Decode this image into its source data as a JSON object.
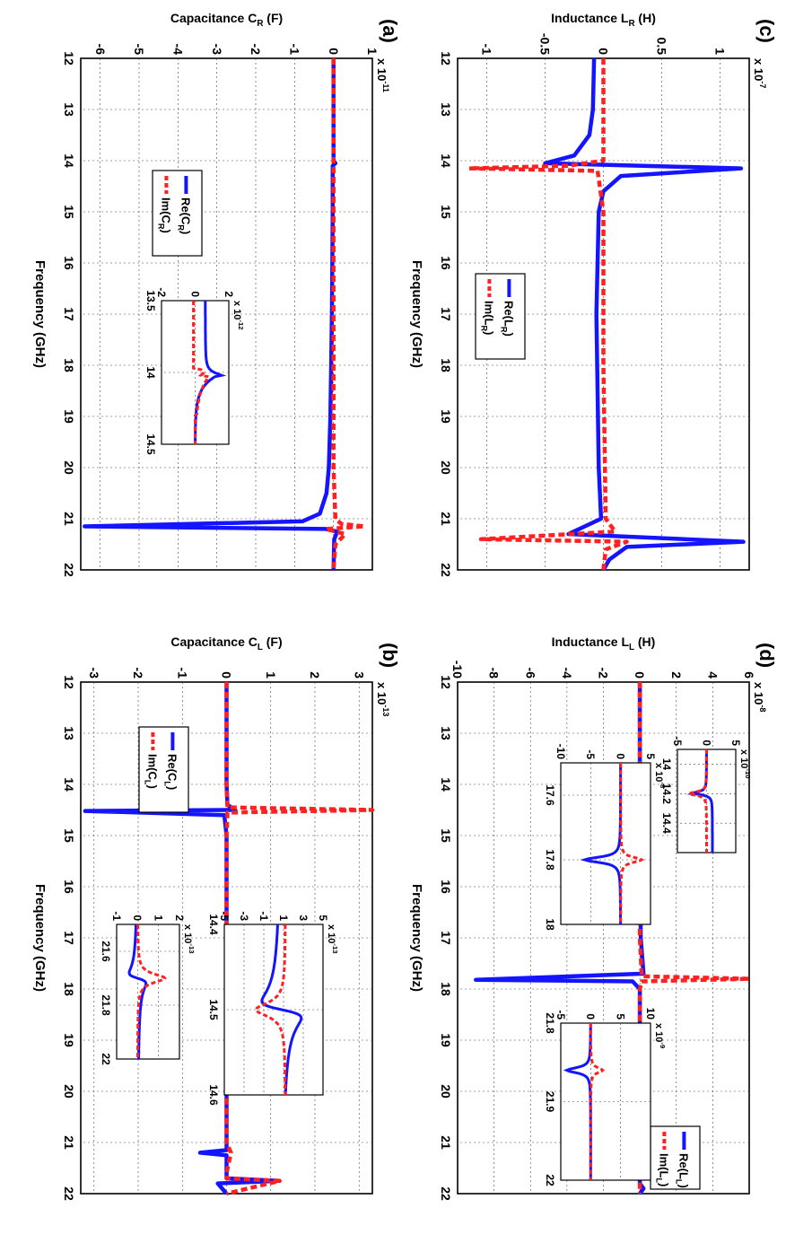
{
  "figure": {
    "xlabel": "Frequency (GHz)",
    "panels": [
      {
        "id": "a",
        "label": "(a)",
        "ylabel_html": [
          "Capacitance  C",
          "R",
          " (F)"
        ],
        "exponent": [
          "x 10",
          "-11"
        ],
        "xticks": [
          "12",
          "13",
          "14",
          "15",
          "16",
          "17",
          "18",
          "19",
          "20",
          "21",
          "22"
        ],
        "yticks": [
          "1",
          "0",
          "-1",
          "-2",
          "-3",
          "-4",
          "-5",
          "-6"
        ],
        "xlim": [
          12,
          22
        ],
        "ylim": [
          -6.5,
          1
        ],
        "legend": {
          "re": [
            "Re(C",
            "R",
            ")"
          ],
          "im": [
            "Im(C",
            "R",
            ")"
          ]
        },
        "inset": {
          "exponent": [
            "x 10",
            "-12"
          ],
          "xticks": [
            "13.5",
            "14",
            "14.5"
          ],
          "yticks": [
            "2",
            "0",
            "-2"
          ],
          "xlim": [
            13.5,
            14.5
          ],
          "ylim": [
            -2,
            2
          ]
        }
      },
      {
        "id": "b",
        "label": "(b)",
        "ylabel_html": [
          "Capacitance  C",
          "L",
          " (F)"
        ],
        "exponent": [
          "x 10",
          "-13"
        ],
        "xticks": [
          "12",
          "13",
          "14",
          "15",
          "16",
          "17",
          "18",
          "19",
          "20",
          "21",
          "22"
        ],
        "yticks": [
          "3",
          "2",
          "1",
          "0",
          "-1",
          "-2",
          "-3"
        ],
        "xlim": [
          12,
          22
        ],
        "ylim": [
          -3.3,
          3.3
        ],
        "legend": {
          "re": [
            "Re(C",
            "L",
            ")"
          ],
          "im": [
            "Im(C",
            "L",
            ")"
          ]
        },
        "insets": [
          {
            "exponent": [
              "x 10",
              "-13"
            ],
            "xticks": [
              "14.4",
              "14.5",
              "14.6"
            ],
            "yticks": [
              "5",
              "3",
              "1",
              "-1",
              "-3",
              "-5"
            ],
            "xlim": [
              14.4,
              14.6
            ],
            "ylim": [
              -5,
              5
            ]
          },
          {
            "exponent": [
              "x 10",
              "-13"
            ],
            "xticks": [
              "21.6",
              "21.8",
              "22"
            ],
            "yticks": [
              "2",
              "1",
              "0",
              "-1"
            ],
            "xlim": [
              21.5,
              22
            ],
            "ylim": [
              -1,
              2
            ]
          }
        ]
      },
      {
        "id": "c",
        "label": "(c)",
        "ylabel_html": [
          "Inductance  L",
          "R",
          " (H)"
        ],
        "exponent": [
          "x 10",
          "-7"
        ],
        "xticks": [
          "12",
          "13",
          "14",
          "15",
          "16",
          "17",
          "18",
          "19",
          "20",
          "21",
          "22"
        ],
        "yticks": [
          "1",
          "0.5",
          "0",
          "-0.5",
          "-1"
        ],
        "xlim": [
          12,
          22
        ],
        "ylim": [
          -1.25,
          1.25
        ],
        "legend": {
          "re": [
            "Re(L",
            "R",
            ")"
          ],
          "im": [
            "Im(L",
            "R",
            ")"
          ]
        }
      },
      {
        "id": "d",
        "label": "(d)",
        "ylabel_html": [
          "Inductance  L",
          "L",
          " (H)"
        ],
        "exponent": [
          "x 10",
          "-8"
        ],
        "xticks": [
          "12",
          "13",
          "14",
          "15",
          "16",
          "17",
          "18",
          "19",
          "20",
          "21",
          "22"
        ],
        "yticks": [
          "6",
          "4",
          "2",
          "0",
          "-2",
          "-4",
          "-6",
          "-8",
          "-10"
        ],
        "xlim": [
          12,
          22
        ],
        "ylim": [
          -10,
          6
        ],
        "legend": {
          "re": [
            "Re(L",
            "L",
            ")"
          ],
          "im": [
            "Im(L",
            "L",
            ")"
          ]
        },
        "insets": [
          {
            "exponent": [
              "x 10",
              "-10"
            ],
            "xticks": [
              "14",
              "14.2",
              "14.4"
            ],
            "yticks": [
              "5",
              "0",
              "-5"
            ],
            "xlim": [
              13.9,
              14.6
            ],
            "ylim": [
              -5,
              5
            ]
          },
          {
            "exponent": [
              "x 10",
              "-8"
            ],
            "xticks": [
              "17.6",
              "17.8",
              "18"
            ],
            "yticks": [
              "5",
              "0",
              "-5",
              "-10"
            ],
            "xlim": [
              17.5,
              18
            ],
            "ylim": [
              -10,
              5
            ]
          },
          {
            "exponent": [
              "x 10",
              "-9"
            ],
            "xticks": [
              "21.8",
              "21.9",
              "22"
            ],
            "yticks": [
              "10",
              "5",
              "0",
              "-5"
            ],
            "xlim": [
              21.8,
              22
            ],
            "ylim": [
              -5,
              10
            ]
          }
        ]
      }
    ]
  },
  "chart_data": [
    {
      "panel": "a",
      "type": "line",
      "xlabel": "Frequency (GHz)",
      "ylabel": "Capacitance C_R (F)",
      "scale": "x 10^-11",
      "xlim": [
        12,
        22
      ],
      "ylim": [
        -6.5,
        1
      ],
      "series": [
        {
          "name": "Re(C_R)",
          "color": "#1414ff",
          "style": "solid",
          "x": [
            12,
            13,
            14,
            14.05,
            14.1,
            15,
            16,
            17,
            18,
            19,
            20,
            20.5,
            20.9,
            21.05,
            21.15,
            21.2,
            21.25,
            21.4,
            22
          ],
          "y": [
            0,
            0,
            0,
            0.05,
            -0.02,
            -0.02,
            -0.03,
            -0.04,
            -0.06,
            -0.08,
            -0.12,
            -0.18,
            -0.35,
            -0.8,
            -6.4,
            -0.2,
            0.1,
            0.02,
            0
          ]
        },
        {
          "name": "Im(C_R)",
          "color": "#ff2020",
          "style": "dashed",
          "x": [
            12,
            14,
            16,
            18,
            20,
            21,
            21.1,
            21.15,
            21.2,
            21.3,
            21.5,
            22
          ],
          "y": [
            0,
            0,
            0,
            0,
            0,
            0.05,
            0.2,
            0.8,
            -0.2,
            0.3,
            0.05,
            0
          ]
        }
      ]
    },
    {
      "panel": "b",
      "type": "line",
      "xlabel": "Frequency (GHz)",
      "ylabel": "Capacitance C_L (F)",
      "scale": "x 10^-13",
      "xlim": [
        12,
        22
      ],
      "ylim": [
        -3.3,
        3.3
      ],
      "series": [
        {
          "name": "Re(C_L)",
          "color": "#1414ff",
          "style": "solid",
          "x": [
            12,
            14,
            14.4,
            14.5,
            14.52,
            14.6,
            15,
            18,
            21,
            21.15,
            21.2,
            21.25,
            21.7,
            21.75,
            21.8,
            22
          ],
          "y": [
            0,
            0,
            0.02,
            0.2,
            -3.2,
            -0.05,
            0,
            0,
            0,
            0,
            -0.6,
            0,
            0,
            1.2,
            -0.2,
            0
          ]
        },
        {
          "name": "Im(C_L)",
          "color": "#ff2020",
          "style": "dashed",
          "x": [
            12,
            14,
            14.45,
            14.5,
            14.55,
            15,
            18,
            21,
            21.2,
            21.6,
            21.7,
            21.75,
            22
          ],
          "y": [
            0,
            0,
            0.02,
            3.3,
            0.02,
            0,
            0,
            0,
            0.1,
            0,
            0,
            1.2,
            0
          ]
        }
      ]
    },
    {
      "panel": "c",
      "type": "line",
      "xlabel": "Frequency (GHz)",
      "ylabel": "Inductance L_R (H)",
      "scale": "x 10^-7",
      "xlim": [
        12,
        22
      ],
      "ylim": [
        -1.25,
        1.25
      ],
      "series": [
        {
          "name": "Re(L_R)",
          "color": "#1414ff",
          "style": "solid",
          "x": [
            12,
            13,
            13.5,
            13.9,
            14.05,
            14.15,
            14.3,
            14.6,
            15,
            17,
            20,
            21,
            21.3,
            21.45,
            21.55,
            21.8,
            22
          ],
          "y": [
            -0.08,
            -0.09,
            -0.12,
            -0.25,
            -0.5,
            1.18,
            0.15,
            0.0,
            -0.04,
            -0.06,
            -0.04,
            -0.02,
            -0.3,
            1.2,
            0.2,
            0.05,
            0
          ]
        },
        {
          "name": "Im(L_R)",
          "color": "#ff2020",
          "style": "dashed",
          "x": [
            12,
            14,
            14.1,
            14.15,
            14.2,
            15,
            18,
            21,
            21.25,
            21.4,
            21.45,
            21.6,
            22
          ],
          "y": [
            0,
            0,
            -0.3,
            -1.15,
            -0.05,
            0,
            0,
            0.02,
            0.1,
            -1.05,
            0.2,
            0.02,
            0
          ]
        }
      ]
    },
    {
      "panel": "d",
      "type": "line",
      "xlabel": "Frequency (GHz)",
      "ylabel": "Inductance L_L (H)",
      "scale": "x 10^-8",
      "xlim": [
        12,
        22
      ],
      "ylim": [
        -10,
        6
      ],
      "series": [
        {
          "name": "Re(L_L)",
          "color": "#1414ff",
          "style": "solid",
          "x": [
            12,
            14,
            17,
            17.7,
            17.82,
            17.85,
            18,
            20,
            21.8,
            21.9,
            22
          ],
          "y": [
            0,
            0,
            0.05,
            0.2,
            -9.0,
            -0.4,
            0,
            0,
            0,
            0.2,
            0
          ]
        },
        {
          "name": "Im(L_L)",
          "color": "#ff2020",
          "style": "dashed",
          "x": [
            12,
            17,
            17.75,
            17.8,
            17.85,
            18,
            22
          ],
          "y": [
            0,
            0,
            0.1,
            6.0,
            0.1,
            0,
            0
          ]
        }
      ]
    }
  ]
}
